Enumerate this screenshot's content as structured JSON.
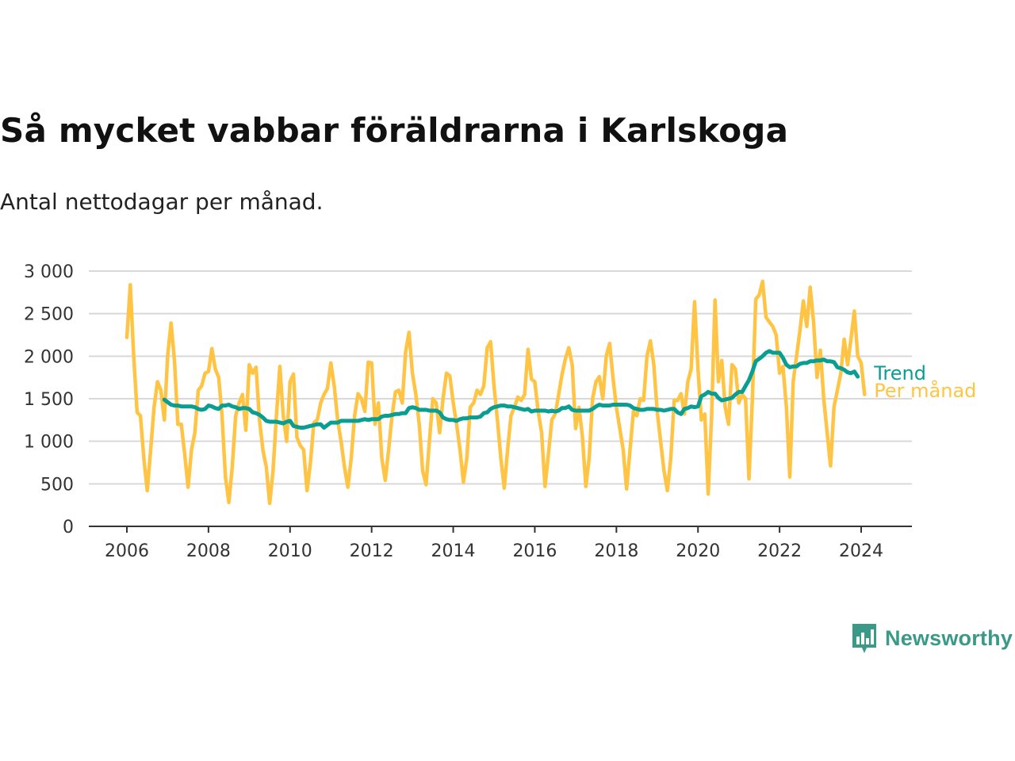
{
  "header": {
    "title": "Så mycket vabbar föräldrarna i Karlskoga",
    "subtitle": "Antal nettodagar per månad."
  },
  "brand": {
    "name": "Newsworthy",
    "color": "#3a9987"
  },
  "colors": {
    "per_month": "#ffc444",
    "trend": "#0a9e92",
    "grid": "#d9d9d9",
    "axis": "#333333"
  },
  "chart_data": {
    "type": "line",
    "x_start": "2006-01",
    "x_step": "month",
    "x_ticks": [
      "2006",
      "2008",
      "2010",
      "2012",
      "2014",
      "2016",
      "2018",
      "2020",
      "2022",
      "2024"
    ],
    "y_ticks": [
      0,
      500,
      1000,
      1500,
      2000,
      2500,
      3000
    ],
    "y_tick_labels": [
      "0",
      "500",
      "1 000",
      "1 500",
      "2 000",
      "2 500",
      "3 000"
    ],
    "ylim": [
      0,
      3000
    ],
    "xlim": [
      "2006-01",
      "2024-06"
    ],
    "grid": true,
    "series": [
      {
        "name": "Per månad",
        "start": "2006-01",
        "values": [
          2220,
          2840,
          2000,
          1340,
          1300,
          800,
          420,
          900,
          1400,
          1700,
          1600,
          1250,
          2000,
          2390,
          1950,
          1200,
          1200,
          850,
          460,
          900,
          1100,
          1600,
          1650,
          1800,
          1820,
          2090,
          1850,
          1750,
          1300,
          580,
          280,
          700,
          1300,
          1450,
          1550,
          1130,
          1900,
          1800,
          1870,
          1250,
          900,
          700,
          270,
          650,
          1300,
          1880,
          1300,
          1000,
          1700,
          1790,
          1050,
          950,
          900,
          420,
          750,
          1220,
          1250,
          1450,
          1550,
          1620,
          1920,
          1650,
          1250,
          1000,
          700,
          460,
          800,
          1300,
          1560,
          1500,
          1350,
          1930,
          1920,
          1200,
          1450,
          800,
          540,
          900,
          1300,
          1580,
          1600,
          1450,
          2050,
          2280,
          1800,
          1550,
          1200,
          650,
          490,
          1000,
          1500,
          1450,
          1100,
          1500,
          1800,
          1770,
          1450,
          1200,
          900,
          520,
          800,
          1400,
          1450,
          1600,
          1550,
          1650,
          2100,
          2170,
          1650,
          1250,
          800,
          450,
          900,
          1300,
          1400,
          1520,
          1480,
          1550,
          2080,
          1730,
          1700,
          1350,
          1100,
          470,
          850,
          1250,
          1320,
          1550,
          1780,
          1970,
          2100,
          1900,
          1150,
          1400,
          1050,
          470,
          800,
          1500,
          1700,
          1760,
          1500,
          2000,
          2150,
          1750,
          1400,
          1150,
          900,
          440,
          900,
          1350,
          1300,
          1500,
          1480,
          2000,
          2180,
          1900,
          1350,
          1000,
          650,
          420,
          800,
          1480,
          1480,
          1560,
          1320,
          1700,
          1850,
          2640,
          1850,
          1250,
          1320,
          380,
          1300,
          2660,
          1700,
          1950,
          1400,
          1200,
          1900,
          1850,
          1450,
          1550,
          1500,
          560,
          1500,
          2670,
          2720,
          2880,
          2460,
          2400,
          2350,
          2250,
          1800,
          1880,
          1400,
          580,
          1700,
          2000,
          2300,
          2650,
          2350,
          2810,
          2400,
          1750,
          2070,
          1500,
          1100,
          710,
          1400,
          1600,
          1800,
          2200,
          1900,
          2200,
          2530,
          2000,
          1920,
          1550
        ]
      },
      {
        "name": "Trend",
        "start": "2006-12",
        "values": [
          1490,
          1460,
          1430,
          1420,
          1420,
          1410,
          1410,
          1410,
          1410,
          1400,
          1380,
          1370,
          1380,
          1420,
          1410,
          1390,
          1380,
          1420,
          1420,
          1430,
          1410,
          1400,
          1380,
          1390,
          1390,
          1380,
          1340,
          1330,
          1310,
          1280,
          1240,
          1230,
          1230,
          1230,
          1220,
          1210,
          1230,
          1240,
          1180,
          1170,
          1160,
          1160,
          1170,
          1180,
          1190,
          1200,
          1200,
          1160,
          1190,
          1220,
          1220,
          1220,
          1240,
          1240,
          1240,
          1240,
          1240,
          1240,
          1250,
          1260,
          1250,
          1260,
          1260,
          1260,
          1290,
          1300,
          1300,
          1310,
          1320,
          1320,
          1330,
          1330,
          1390,
          1400,
          1390,
          1370,
          1370,
          1370,
          1360,
          1360,
          1360,
          1340,
          1280,
          1260,
          1250,
          1250,
          1240,
          1260,
          1270,
          1270,
          1280,
          1280,
          1280,
          1290,
          1330,
          1340,
          1380,
          1400,
          1410,
          1420,
          1420,
          1410,
          1410,
          1400,
          1390,
          1380,
          1370,
          1380,
          1350,
          1360,
          1360,
          1360,
          1360,
          1350,
          1360,
          1350,
          1360,
          1390,
          1390,
          1410,
          1370,
          1360,
          1360,
          1360,
          1360,
          1360,
          1380,
          1410,
          1430,
          1420,
          1420,
          1420,
          1430,
          1430,
          1430,
          1430,
          1430,
          1420,
          1390,
          1380,
          1370,
          1370,
          1380,
          1380,
          1380,
          1370,
          1370,
          1360,
          1370,
          1380,
          1380,
          1340,
          1320,
          1380,
          1390,
          1410,
          1400,
          1410,
          1530,
          1550,
          1580,
          1560,
          1560,
          1510,
          1480,
          1490,
          1500,
          1510,
          1550,
          1580,
          1580,
          1650,
          1720,
          1820,
          1940,
          1970,
          2000,
          2040,
          2060,
          2040,
          2040,
          2040,
          1980,
          1900,
          1870,
          1880,
          1880,
          1910,
          1920,
          1920,
          1940,
          1940,
          1950,
          1950,
          1960,
          1940,
          1940,
          1930,
          1870,
          1860,
          1840,
          1810,
          1800,
          1820,
          1760
        ]
      }
    ]
  }
}
